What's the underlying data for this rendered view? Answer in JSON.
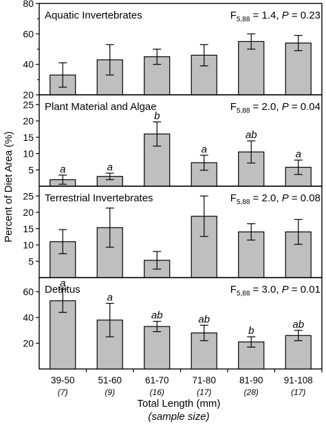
{
  "chart_data": [
    {
      "type": "bar",
      "title": "Aquatic Invertebrates",
      "stat": {
        "F": "F",
        "df": "5,88",
        "value": " = 1.4, ",
        "p_label": "P",
        "p_value": " = 0.23"
      },
      "categories": [
        "39-50",
        "51-60",
        "61-70",
        "71-80",
        "81-90",
        "91-108"
      ],
      "values": [
        33,
        43,
        45,
        46,
        55,
        54
      ],
      "error": [
        8,
        10,
        5,
        7,
        5,
        5
      ],
      "letters": [
        "",
        "",
        "",
        "",
        "",
        ""
      ],
      "ylim": [
        20,
        80
      ],
      "yticks": [
        20,
        40,
        60,
        80
      ],
      "yminor": [
        30,
        50,
        70
      ]
    },
    {
      "type": "bar",
      "title": "Plant Material and Algae",
      "stat": {
        "F": "F",
        "df": "5,88",
        "value": " = 2.0, ",
        "p_label": "P",
        "p_value": " = 0.04"
      },
      "categories": [
        "39-50",
        "51-60",
        "61-70",
        "71-80",
        "81-90",
        "91-108"
      ],
      "values": [
        2,
        3,
        16,
        7.2,
        10.5,
        5.8
      ],
      "error": [
        1.4,
        1,
        3.7,
        2.3,
        3.4,
        2.2
      ],
      "letters": [
        "a",
        "a",
        "b",
        "a",
        "ab",
        "a"
      ],
      "ylim": [
        0,
        28
      ],
      "yticks": [
        5,
        10,
        15,
        20,
        25
      ],
      "yminor": []
    },
    {
      "type": "bar",
      "title": "Terrestrial Invertebrates",
      "stat": {
        "F": "F",
        "df": "5,88",
        "value": " = 2.0, ",
        "p_label": "P",
        "p_value": " = 0.08"
      },
      "categories": [
        "39-50",
        "51-60",
        "61-70",
        "71-80",
        "81-90",
        "91-108"
      ],
      "values": [
        11,
        15.3,
        5.3,
        18.8,
        14,
        14
      ],
      "error": [
        3.7,
        6,
        2.7,
        6.2,
        2.5,
        3.8
      ],
      "letters": [
        "",
        "",
        "",
        "",
        "",
        ""
      ],
      "ylim": [
        0,
        28
      ],
      "yticks": [
        5,
        10,
        15,
        20,
        25
      ],
      "yminor": []
    },
    {
      "type": "bar",
      "title": "Detritus",
      "stat": {
        "F": "F",
        "df": "5,88",
        "value": " = 3.0, ",
        "p_label": "P",
        "p_value": " = 0.01"
      },
      "categories": [
        "39-50",
        "51-60",
        "61-70",
        "71-80",
        "81-90",
        "91-108"
      ],
      "values": [
        53,
        38,
        33,
        28,
        21,
        26
      ],
      "error": [
        9,
        13,
        4,
        6,
        4,
        4
      ],
      "letters": [
        "a",
        "a",
        "ab",
        "ab",
        "b",
        "ab"
      ],
      "ylim": [
        0,
        71
      ],
      "yticks": [
        20,
        40,
        60
      ],
      "yminor": []
    }
  ],
  "axes": {
    "ylabel": "Percent of Diet Area (%)",
    "xlabel": "Total Length (mm)",
    "xsublabel": "(sample size)"
  },
  "sample_sizes": [
    "(7)",
    "(9)",
    "(16)",
    "(17)",
    "(28)",
    "(17)"
  ]
}
